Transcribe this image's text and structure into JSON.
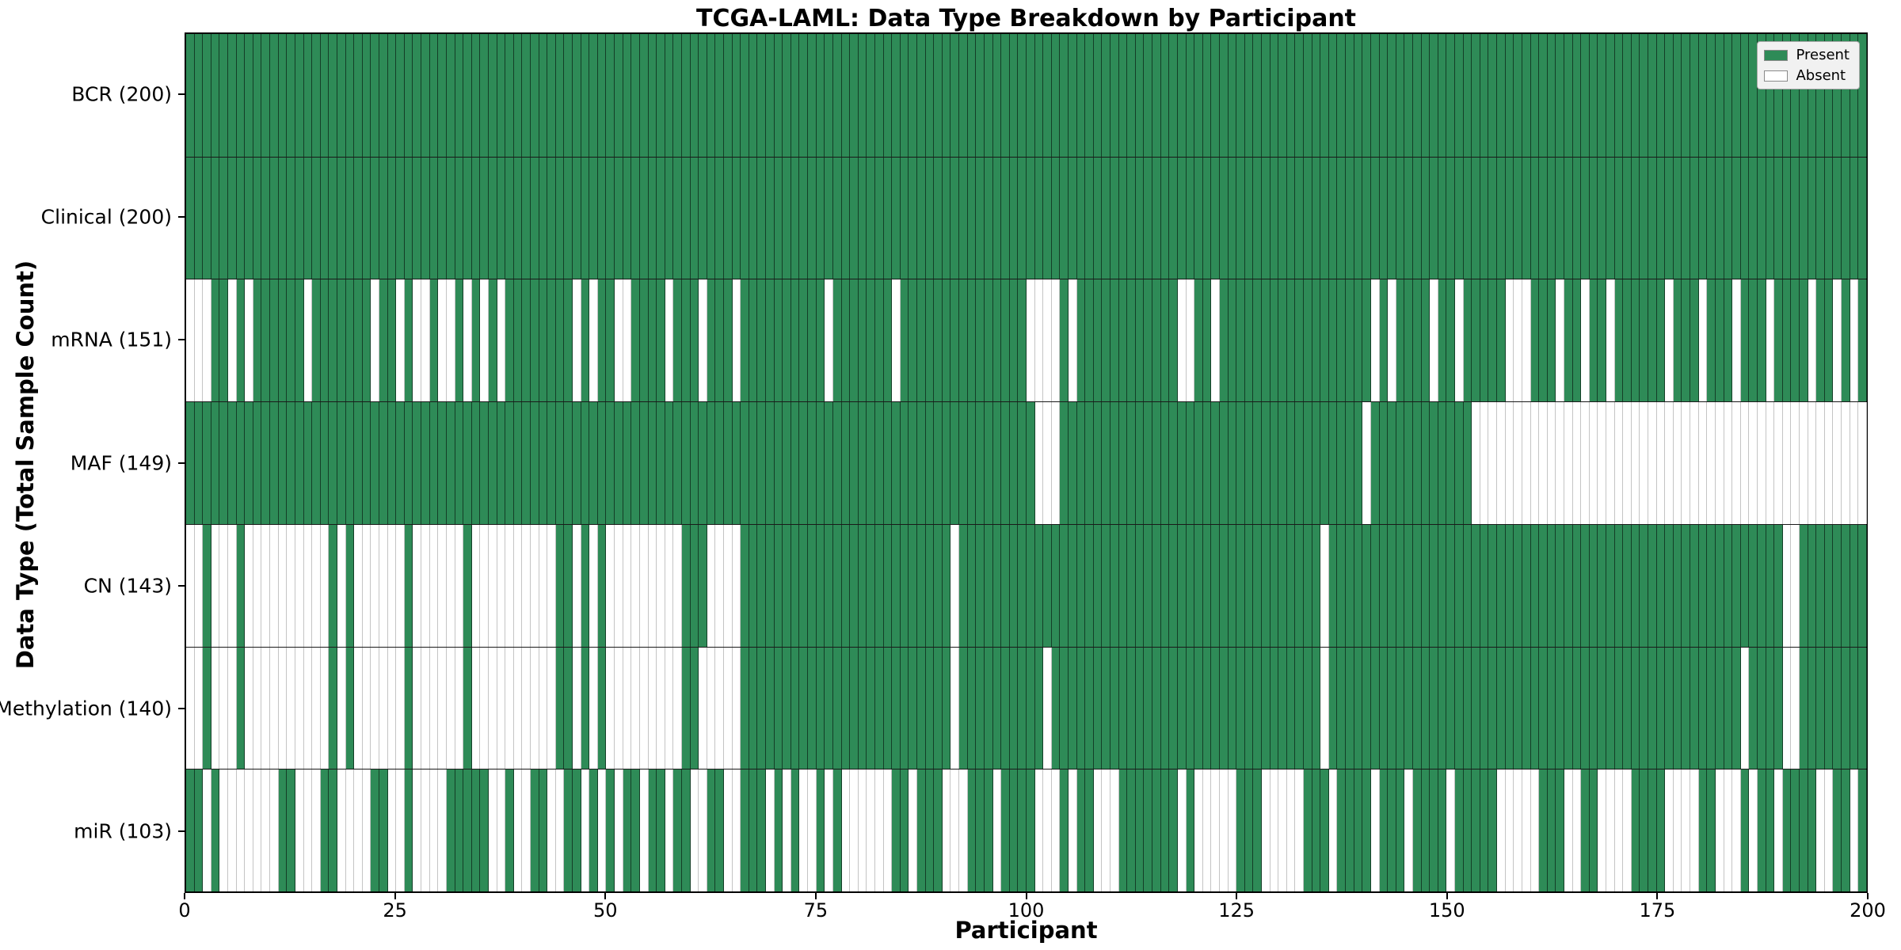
{
  "chart_data": {
    "type": "heatmap",
    "title": "TCGA-LAML: Data Type Breakdown by Participant",
    "xlabel": "Participant",
    "ylabel": "Data Type (Total Sample Count)",
    "n_participants": 200,
    "x_range": [
      0,
      200
    ],
    "x_ticks": [
      0,
      25,
      50,
      75,
      100,
      125,
      150,
      175,
      200
    ],
    "grid": false,
    "legend_position": "upper right",
    "legend": [
      {
        "label": "Present",
        "color": "#2e8b57"
      },
      {
        "label": "Absent",
        "color": "#ffffff"
      }
    ],
    "colors": {
      "present": "#2e8b57",
      "absent": "#ffffff",
      "present_edge": "#1c4a30",
      "absent_edge": "#c4c4c4"
    },
    "rows": [
      {
        "label": "BCR (200)",
        "name": "BCR",
        "present_count": 200,
        "absent": []
      },
      {
        "label": "Clinical (200)",
        "name": "Clinical",
        "present_count": 200,
        "absent": []
      },
      {
        "label": "mRNA (151)",
        "name": "mRNA",
        "present_count": 151,
        "absent": [
          0,
          1,
          2,
          5,
          7,
          14,
          22,
          25,
          27,
          28,
          30,
          31,
          33,
          35,
          37,
          46,
          48,
          51,
          52,
          57,
          61,
          65,
          76,
          84,
          100,
          101,
          102,
          103,
          105,
          118,
          119,
          122,
          141,
          143,
          148,
          151,
          157,
          158,
          159,
          163,
          166,
          169,
          176,
          180,
          184,
          188,
          193,
          196,
          198
        ]
      },
      {
        "label": "MAF (149)",
        "name": "MAF",
        "present_count": 149,
        "absent": [
          101,
          102,
          103,
          140,
          153,
          154,
          155,
          156,
          157,
          158,
          159,
          160,
          161,
          162,
          163,
          164,
          165,
          166,
          167,
          168,
          169,
          170,
          171,
          172,
          173,
          174,
          175,
          176,
          177,
          178,
          179,
          180,
          181,
          182,
          183,
          184,
          185,
          186,
          187,
          188,
          189,
          190,
          191,
          192,
          193,
          194,
          195,
          196,
          197,
          198,
          199
        ]
      },
      {
        "label": "CN (143)",
        "name": "CN",
        "present_count": 143,
        "absent": [
          0,
          1,
          3,
          4,
          5,
          7,
          8,
          9,
          10,
          11,
          12,
          13,
          14,
          15,
          16,
          18,
          20,
          21,
          22,
          23,
          24,
          25,
          27,
          28,
          29,
          30,
          31,
          32,
          34,
          35,
          36,
          37,
          38,
          39,
          40,
          41,
          42,
          43,
          46,
          48,
          50,
          51,
          52,
          53,
          54,
          55,
          56,
          57,
          58,
          62,
          63,
          64,
          65,
          91,
          135,
          190,
          191
        ]
      },
      {
        "label": "Methylation (140)",
        "name": "Methylation",
        "present_count": 140,
        "absent": [
          0,
          1,
          3,
          4,
          5,
          7,
          8,
          9,
          10,
          11,
          12,
          13,
          14,
          15,
          16,
          18,
          20,
          21,
          22,
          23,
          24,
          25,
          27,
          28,
          29,
          30,
          31,
          32,
          34,
          35,
          36,
          37,
          38,
          39,
          40,
          41,
          42,
          43,
          46,
          48,
          50,
          51,
          52,
          53,
          54,
          55,
          56,
          57,
          58,
          61,
          62,
          63,
          64,
          65,
          91,
          102,
          135,
          185,
          190,
          191
        ]
      },
      {
        "label": "miR (103)",
        "name": "miR",
        "present_count": 103,
        "absent": [
          2,
          4,
          5,
          6,
          7,
          8,
          9,
          10,
          13,
          14,
          15,
          18,
          19,
          20,
          21,
          24,
          25,
          27,
          28,
          29,
          30,
          36,
          37,
          39,
          40,
          43,
          44,
          47,
          49,
          51,
          54,
          57,
          60,
          61,
          64,
          65,
          69,
          71,
          73,
          74,
          76,
          78,
          79,
          80,
          81,
          82,
          83,
          86,
          90,
          91,
          92,
          96,
          101,
          102,
          103,
          105,
          108,
          109,
          110,
          118,
          120,
          121,
          122,
          123,
          124,
          128,
          129,
          130,
          131,
          132,
          136,
          141,
          145,
          150,
          156,
          157,
          158,
          159,
          160,
          164,
          165,
          168,
          169,
          170,
          171,
          176,
          177,
          178,
          179,
          182,
          183,
          184,
          186,
          189,
          194,
          195,
          198
        ]
      }
    ]
  }
}
